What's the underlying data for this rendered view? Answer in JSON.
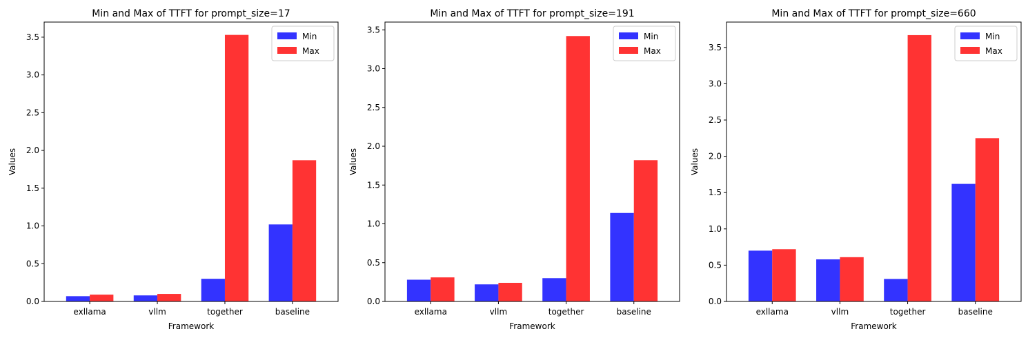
{
  "chart_data": [
    {
      "type": "bar",
      "title": "Min and Max of TTFT for prompt_size=17",
      "xlabel": "Framework",
      "ylabel": "Values",
      "categories": [
        "exllama",
        "vllm",
        "together",
        "baseline"
      ],
      "series": [
        {
          "name": "Min",
          "values": [
            0.07,
            0.08,
            0.3,
            1.02
          ]
        },
        {
          "name": "Max",
          "values": [
            0.09,
            0.1,
            3.53,
            1.87
          ]
        }
      ],
      "ylim": [
        0,
        3.7
      ],
      "yticks": [
        "0.0",
        "0.5",
        "1.0",
        "1.5",
        "2.0",
        "2.5",
        "3.0",
        "3.5"
      ],
      "legend": "top-right",
      "grid": false
    },
    {
      "type": "bar",
      "title": "Min and Max of TTFT for prompt_size=191",
      "xlabel": "Framework",
      "ylabel": "Values",
      "categories": [
        "exllama",
        "vllm",
        "together",
        "baseline"
      ],
      "series": [
        {
          "name": "Min",
          "values": [
            0.28,
            0.22,
            0.3,
            1.14
          ]
        },
        {
          "name": "Max",
          "values": [
            0.31,
            0.24,
            3.42,
            1.82
          ]
        }
      ],
      "ylim": [
        0,
        3.6
      ],
      "yticks": [
        "0.0",
        "0.5",
        "1.0",
        "1.5",
        "2.0",
        "2.5",
        "3.0",
        "3.5"
      ],
      "legend": "top-right",
      "grid": false
    },
    {
      "type": "bar",
      "title": "Min and Max of TTFT for prompt_size=660",
      "xlabel": "Framework",
      "ylabel": "Values",
      "categories": [
        "exllama",
        "vllm",
        "together",
        "baseline"
      ],
      "series": [
        {
          "name": "Min",
          "values": [
            0.7,
            0.58,
            0.31,
            1.62
          ]
        },
        {
          "name": "Max",
          "values": [
            0.72,
            0.61,
            3.67,
            2.25
          ]
        }
      ],
      "ylim": [
        0,
        3.85
      ],
      "yticks": [
        "0.0",
        "0.5",
        "1.0",
        "1.5",
        "2.0",
        "2.5",
        "3.0",
        "3.5"
      ],
      "legend": "top-right",
      "grid": false
    }
  ],
  "colors": {
    "min": "#3333ff",
    "max": "#ff3333"
  }
}
